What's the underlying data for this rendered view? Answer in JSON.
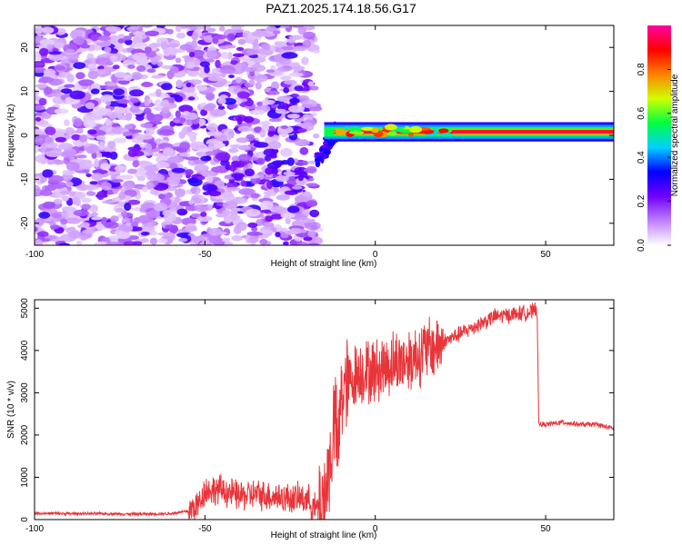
{
  "title": "PAZ1.2025.174.18.56.G17",
  "chart_data": [
    {
      "type": "heatmap",
      "xlabel": "Height of straight line (km)",
      "ylabel": "Frequency (Hz)",
      "xlim": [
        -100,
        70
      ],
      "ylim": [
        -25,
        25
      ],
      "x_ticks": [
        -100,
        -50,
        0,
        50
      ],
      "y_ticks": [
        -20,
        -10,
        0,
        10,
        20
      ],
      "colorbar": {
        "label": "Normalized spectral amplitude",
        "range": [
          0,
          1
        ],
        "ticks": [
          0.0,
          0.2,
          0.4,
          0.6,
          0.8
        ],
        "tick_labels": [
          "0.0",
          "0.2",
          "0.4",
          "0.6",
          "0.8"
        ],
        "colors": [
          "#ffffff",
          "#c080ff",
          "#7000ff",
          "#0000ff",
          "#00d0ff",
          "#00ff40",
          "#d0ff00",
          "#ff8000",
          "#ff0000",
          "#ff00a0"
        ]
      },
      "features": [
        {
          "name": "noise",
          "x_range": [
            -100,
            -17
          ],
          "y_range": [
            -25,
            25
          ],
          "amplitude": 0.05
        },
        {
          "name": "signal-band",
          "x_range": [
            -15,
            70
          ],
          "center_frequency": 0.8,
          "width": 3,
          "amplitude": 1.0
        }
      ]
    },
    {
      "type": "line",
      "xlabel": "Height of straight line (km)",
      "ylabel": "SNR (10 * v/v)",
      "xlim": [
        -100,
        70
      ],
      "ylim": [
        0,
        5200
      ],
      "x_ticks": [
        -100,
        -50,
        0,
        50
      ],
      "y_ticks": [
        0,
        1000,
        2000,
        3000,
        4000,
        5000
      ],
      "color": "#e8353a",
      "series": [
        {
          "x": [
            -100,
            -90,
            -80,
            -70,
            -60,
            -55,
            -52,
            -50,
            -45,
            -40,
            -35,
            -30,
            -25,
            -20,
            -17,
            -15,
            -13,
            -12,
            -11,
            -10,
            -8,
            -5,
            0,
            5,
            10,
            15,
            20,
            25,
            30,
            35,
            40,
            45,
            47.5,
            48,
            50,
            55,
            60,
            65,
            70
          ],
          "y": [
            150,
            140,
            140,
            130,
            140,
            200,
            350,
            700,
            700,
            550,
            600,
            550,
            500,
            500,
            200,
            500,
            1500,
            2500,
            1500,
            3000,
            3200,
            3500,
            3500,
            3700,
            3800,
            4000,
            4200,
            4400,
            4600,
            4800,
            4850,
            4900,
            4950,
            2250,
            2250,
            2300,
            2250,
            2250,
            2150
          ]
        }
      ]
    }
  ]
}
